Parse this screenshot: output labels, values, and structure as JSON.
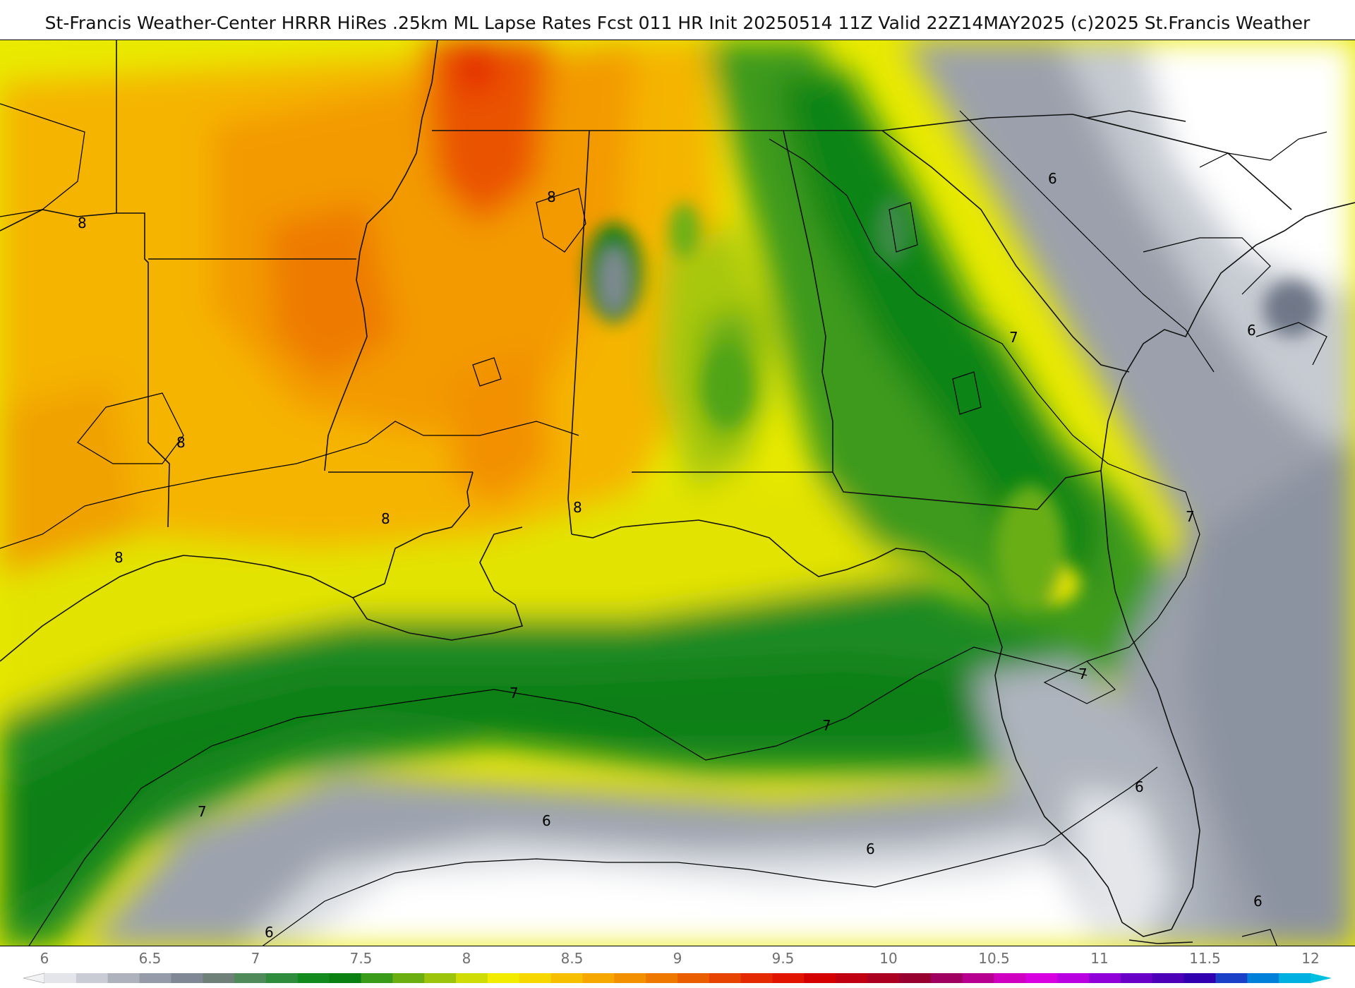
{
  "header": {
    "title": "St-Francis Weather-Center HRRR HiRes .25km ML Lapse Rates  Fcst 011 HR Init 20250514 11Z  Valid 22Z14MAY2025   (c)2025 St.Francis Weather"
  },
  "map": {
    "contour_labels": [
      "8",
      "8",
      "8",
      "8",
      "8",
      "8",
      "7",
      "7",
      "7",
      "7",
      "7",
      "7",
      "6",
      "6",
      "6",
      "6",
      "6",
      "6",
      "6"
    ]
  },
  "legend": {
    "ticks": [
      "6",
      "6.5",
      "7",
      "7.5",
      "8",
      "8.5",
      "9",
      "9.5",
      "10",
      "10.5",
      "11",
      "11.5",
      "12"
    ],
    "colors": [
      "#e3e5ea",
      "#c9ccd4",
      "#adb2bd",
      "#959ba8",
      "#808896",
      "#6e8078",
      "#4e8a5a",
      "#2f8c3c",
      "#138a1e",
      "#0a7f12",
      "#3a9a1a",
      "#6aae12",
      "#9cc40c",
      "#cfdc05",
      "#f2ec00",
      "#f6d800",
      "#f6c000",
      "#f6a800",
      "#f29000",
      "#ee7800",
      "#ea5e00",
      "#e64400",
      "#e42a00",
      "#e01400",
      "#d40000",
      "#c00010",
      "#ac0020",
      "#980030",
      "#a00060",
      "#b80090",
      "#d000c0",
      "#d800e0",
      "#b800e0",
      "#9000d8",
      "#6800c8",
      "#4c00b8",
      "#3000b0",
      "#1a40c8",
      "#0080d8",
      "#00b0e0"
    ]
  }
}
